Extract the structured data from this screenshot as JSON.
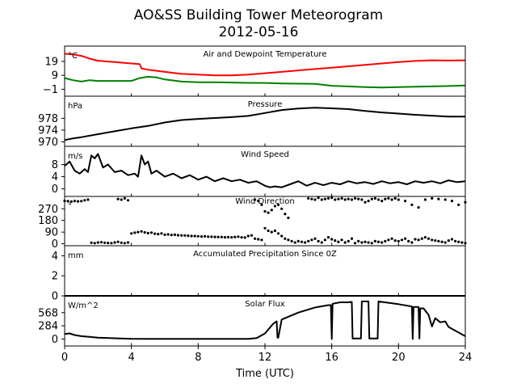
{
  "figure": {
    "title_line1": "AO&SS Building Tower Meteorogram",
    "title_line2": "2012-05-16",
    "xlabel": "Time (UTC)",
    "x_ticks": [
      "0",
      "4",
      "8",
      "12",
      "16",
      "20",
      "24"
    ]
  },
  "chart_data": [
    {
      "type": "line",
      "title": "Air and Dewpoint Temperature",
      "unit": "°C",
      "xlim": [
        0,
        24
      ],
      "ylim": [
        -6,
        30
      ],
      "y_ticks": [
        19,
        9,
        -1
      ],
      "y_tick_labels": [
        "19",
        "9",
        "−1"
      ],
      "series": [
        {
          "color": "#ff0000",
          "x": [
            0,
            0.5,
            1,
            1.5,
            2,
            3,
            4,
            4.5,
            4.6,
            5,
            6,
            7,
            8,
            9,
            10,
            11,
            12,
            13,
            14,
            15,
            16,
            17,
            18,
            19,
            20,
            21,
            22,
            23,
            24
          ],
          "y": [
            24.5,
            24,
            23,
            21,
            19.5,
            18.5,
            17.5,
            17,
            14,
            13,
            11.5,
            10,
            9.5,
            9,
            9,
            9.5,
            10.5,
            11.5,
            12.5,
            13.5,
            14.5,
            15.5,
            16.5,
            17.5,
            18.5,
            19.3,
            19.8,
            19.6,
            19.8
          ]
        },
        {
          "color": "#008000",
          "x": [
            0,
            0.5,
            1,
            1.5,
            2,
            3,
            4,
            4.5,
            5,
            5.5,
            6,
            7,
            8,
            9,
            10,
            11,
            12,
            13,
            14,
            15,
            16,
            17,
            18,
            19,
            20,
            21,
            22,
            23,
            24
          ],
          "y": [
            7,
            5.5,
            4.5,
            5.5,
            5,
            5,
            5,
            7,
            8,
            7.5,
            6,
            4.5,
            4,
            4,
            3.8,
            3.6,
            3.5,
            3.2,
            3,
            2.8,
            1.5,
            1,
            0.5,
            0.3,
            0.5,
            0.8,
            1,
            1.3,
            1.7
          ]
        }
      ]
    },
    {
      "type": "line",
      "title": "Pressure",
      "unit": "hPa",
      "xlim": [
        0,
        24
      ],
      "ylim": [
        968.5,
        985.5
      ],
      "y_ticks": [
        978,
        974,
        970
      ],
      "y_tick_labels": [
        "978",
        "974",
        "970"
      ],
      "series": [
        {
          "color": "#000000",
          "x": [
            0,
            0.5,
            1,
            2,
            3,
            4,
            5,
            6,
            7,
            8,
            9,
            10,
            11,
            12,
            13,
            14,
            15,
            16,
            17,
            18,
            19,
            20,
            21,
            22,
            23,
            24
          ],
          "y": [
            970.6,
            971.2,
            971.6,
            972.6,
            973.6,
            974.6,
            975.4,
            976.6,
            977.4,
            977.8,
            978.1,
            978.4,
            978.8,
            979.8,
            980.8,
            981.3,
            981.6,
            981.4,
            981.1,
            980.5,
            980.0,
            979.6,
            979.2,
            978.9,
            978.6,
            978.6
          ]
        }
      ]
    },
    {
      "type": "line",
      "title": "Wind Speed",
      "unit": "m/s",
      "xlim": [
        0,
        24
      ],
      "ylim": [
        -2.5,
        14
      ],
      "y_ticks": [
        8,
        4,
        0
      ],
      "y_tick_labels": [
        "8",
        "4",
        "0"
      ],
      "series": [
        {
          "color": "#000000",
          "x": [
            0,
            0.3,
            0.6,
            0.9,
            1.2,
            1.4,
            1.6,
            1.8,
            2.0,
            2.3,
            2.6,
            3.0,
            3.4,
            3.8,
            4.2,
            4.4,
            4.6,
            4.8,
            5.0,
            5.2,
            5.5,
            6.0,
            6.5,
            7.0,
            7.5,
            8.0,
            8.5,
            9.0,
            9.5,
            10.0,
            10.5,
            11.0,
            11.5,
            12.0,
            12.3,
            12.6,
            13.0,
            13.5,
            14.0,
            14.5,
            15.0,
            15.5,
            16.0,
            16.5,
            17.0,
            17.5,
            18.0,
            18.5,
            19.0,
            19.5,
            20.0,
            20.5,
            21.0,
            21.5,
            22.0,
            22.5,
            23.0,
            23.5,
            24.0
          ],
          "y": [
            7.5,
            9,
            6,
            5,
            6.5,
            5.5,
            11,
            10,
            11.5,
            7,
            8,
            5.5,
            6,
            4.5,
            5,
            4,
            11,
            8,
            9,
            5,
            6,
            4,
            5,
            3.5,
            4.5,
            3,
            4,
            2.5,
            3.5,
            2.5,
            3,
            2,
            2.5,
            1,
            0.5,
            0.8,
            0.5,
            1.5,
            2.5,
            1,
            2,
            1.2,
            2,
            1.5,
            2.5,
            1.8,
            2.2,
            1.6,
            2.5,
            1.8,
            2.2,
            1.5,
            2.5,
            2.0,
            2.5,
            1.8,
            2.8,
            2.2,
            2.5
          ]
        }
      ]
    },
    {
      "type": "scatter",
      "title": "Wind Direction",
      "unit": "°",
      "xlim": [
        0,
        24
      ],
      "ylim": [
        -15,
        365
      ],
      "y_ticks": [
        270,
        180,
        90,
        0
      ],
      "y_tick_labels": [
        "270",
        "180",
        "90",
        "0"
      ],
      "series": [
        {
          "color": "#000000",
          "x": [
            0.0,
            0.2,
            0.4,
            0.6,
            0.8,
            1.0,
            1.2,
            1.4,
            1.6,
            1.8,
            2.0,
            2.2,
            2.4,
            2.6,
            2.8,
            3.0,
            3.2,
            3.4,
            3.6,
            3.8,
            4.0,
            4.2,
            4.4,
            4.6,
            4.8,
            5.0,
            5.2,
            5.4,
            5.6,
            5.8,
            6.0,
            6.2,
            6.4,
            6.6,
            6.8,
            7.0,
            7.2,
            7.4,
            7.6,
            7.8,
            8.0,
            8.2,
            8.4,
            8.6,
            8.8,
            9.0,
            9.2,
            9.4,
            9.6,
            9.8,
            10.0,
            10.2,
            10.4,
            10.6,
            10.8,
            11.0,
            11.2,
            11.4,
            11.6,
            11.8,
            12.0,
            12.2,
            12.4,
            12.6,
            12.8,
            13.0,
            13.2,
            13.4,
            13.6,
            13.8,
            14.0,
            14.2,
            14.4,
            14.6,
            14.8,
            15.0,
            15.2,
            15.4,
            15.6,
            15.8,
            16.0,
            16.2,
            16.4,
            16.6,
            16.8,
            17.0,
            17.2,
            17.4,
            17.6,
            17.8,
            18.0,
            18.2,
            18.4,
            18.6,
            18.8,
            19.0,
            19.2,
            19.4,
            19.6,
            19.8,
            20.0,
            20.2,
            20.4,
            20.6,
            20.8,
            21.0,
            21.2,
            21.4,
            21.6,
            21.8,
            22.0,
            22.2,
            22.4,
            22.6,
            22.8,
            23.0,
            23.2,
            23.4,
            23.6,
            23.8,
            24.0,
            3.2,
            3.4,
            3.6,
            3.8,
            11.4,
            11.6,
            11.8,
            12.0,
            12.2,
            12.4,
            12.6,
            12.8,
            13.0,
            13.2,
            13.4,
            14.6,
            14.8,
            15.0,
            15.2,
            15.4,
            15.6,
            15.8,
            16.0,
            16.2,
            16.4,
            16.6,
            16.8,
            17.0,
            17.2,
            17.4,
            17.6,
            17.8,
            18.0,
            18.2,
            18.4,
            18.6,
            18.8,
            19.0,
            19.2,
            19.4,
            19.6,
            19.8,
            20.0,
            20.4,
            20.8,
            21.2,
            21.6,
            22.0,
            22.4,
            22.8,
            23.2,
            23.6,
            24.0
          ],
          "y": [
            330,
            328,
            325,
            330,
            327,
            329,
            335,
            340,
            8,
            5,
            10,
            12,
            8,
            6,
            5,
            10,
            15,
            8,
            5,
            10,
            80,
            85,
            90,
            95,
            88,
            82,
            86,
            78,
            75,
            80,
            70,
            72,
            68,
            70,
            66,
            65,
            64,
            62,
            60,
            60,
            58,
            56,
            57,
            55,
            54,
            53,
            52,
            52,
            50,
            51,
            50,
            52,
            55,
            50,
            48,
            60,
            65,
            40,
            35,
            30,
            120,
            100,
            90,
            100,
            80,
            60,
            40,
            30,
            20,
            10,
            20,
            15,
            10,
            20,
            30,
            40,
            20,
            10,
            30,
            50,
            35,
            25,
            15,
            30,
            10,
            20,
            40,
            5,
            20,
            10,
            15,
            10,
            5,
            20,
            15,
            10,
            20,
            30,
            40,
            25,
            20,
            30,
            40,
            20,
            10,
            35,
            30,
            40,
            50,
            40,
            30,
            25,
            20,
            15,
            10,
            25,
            35,
            20,
            15,
            10,
            5,
            345,
            340,
            350,
            335,
            340,
            330,
            300,
            250,
            240,
            260,
            290,
            300,
            270,
            230,
            200,
            350,
            345,
            340,
            355,
            340,
            345,
            350,
            355,
            340,
            345,
            350,
            340,
            345,
            340,
            350,
            345,
            340,
            320,
            330,
            345,
            350,
            340,
            330,
            345,
            350,
            340,
            350,
            340,
            330,
            300,
            280,
            340,
            350,
            345,
            340,
            330,
            300,
            320
          ]
        }
      ]
    },
    {
      "type": "line",
      "title": "Accumulated Precipitation Since 0Z",
      "unit": "mm",
      "xlim": [
        0,
        24
      ],
      "ylim": [
        0,
        5
      ],
      "y_ticks": [
        4,
        2,
        0
      ],
      "y_tick_labels": [
        "4",
        "2",
        "0"
      ],
      "series": [
        {
          "color": "#000000",
          "x": [
            0,
            24
          ],
          "y": [
            0,
            0
          ]
        }
      ]
    },
    {
      "type": "line",
      "title": "Solar Flux",
      "unit": "W/m^2",
      "xlim": [
        0,
        24
      ],
      "ylim": [
        -150,
        930
      ],
      "y_ticks": [
        568,
        284,
        0
      ],
      "y_tick_labels": [
        "568",
        "284",
        "0"
      ],
      "series": [
        {
          "color": "#000000",
          "x": [
            0,
            0.3,
            0.6,
            1.0,
            1.5,
            2.0,
            3.0,
            4.0,
            5.0,
            6.0,
            7.0,
            8.0,
            9.0,
            10.0,
            11.0,
            11.5,
            12.0,
            12.5,
            12.7,
            12.75,
            12.8,
            13.0,
            14.0,
            15.0,
            15.8,
            15.95,
            16.0,
            16.05,
            16.5,
            17.0,
            17.2,
            17.25,
            17.75,
            17.8,
            18.2,
            18.25,
            18.75,
            18.8,
            19.0,
            20.0,
            20.8,
            20.85,
            20.9,
            21.2,
            21.25,
            21.3,
            21.5,
            21.8,
            22.0,
            22.2,
            22.5,
            22.8,
            23.0,
            23.5,
            24.0
          ],
          "y": [
            110,
            120,
            85,
            60,
            45,
            30,
            15,
            5,
            3,
            2,
            2,
            2,
            2,
            2,
            2,
            20,
            120,
            330,
            380,
            30,
            30,
            420,
            570,
            680,
            730,
            730,
            0,
            760,
            790,
            790,
            800,
            10,
            10,
            810,
            810,
            10,
            10,
            810,
            800,
            750,
            700,
            0,
            690,
            690,
            10,
            660,
            660,
            520,
            270,
            450,
            360,
            380,
            260,
            160,
            60
          ]
        }
      ]
    }
  ]
}
